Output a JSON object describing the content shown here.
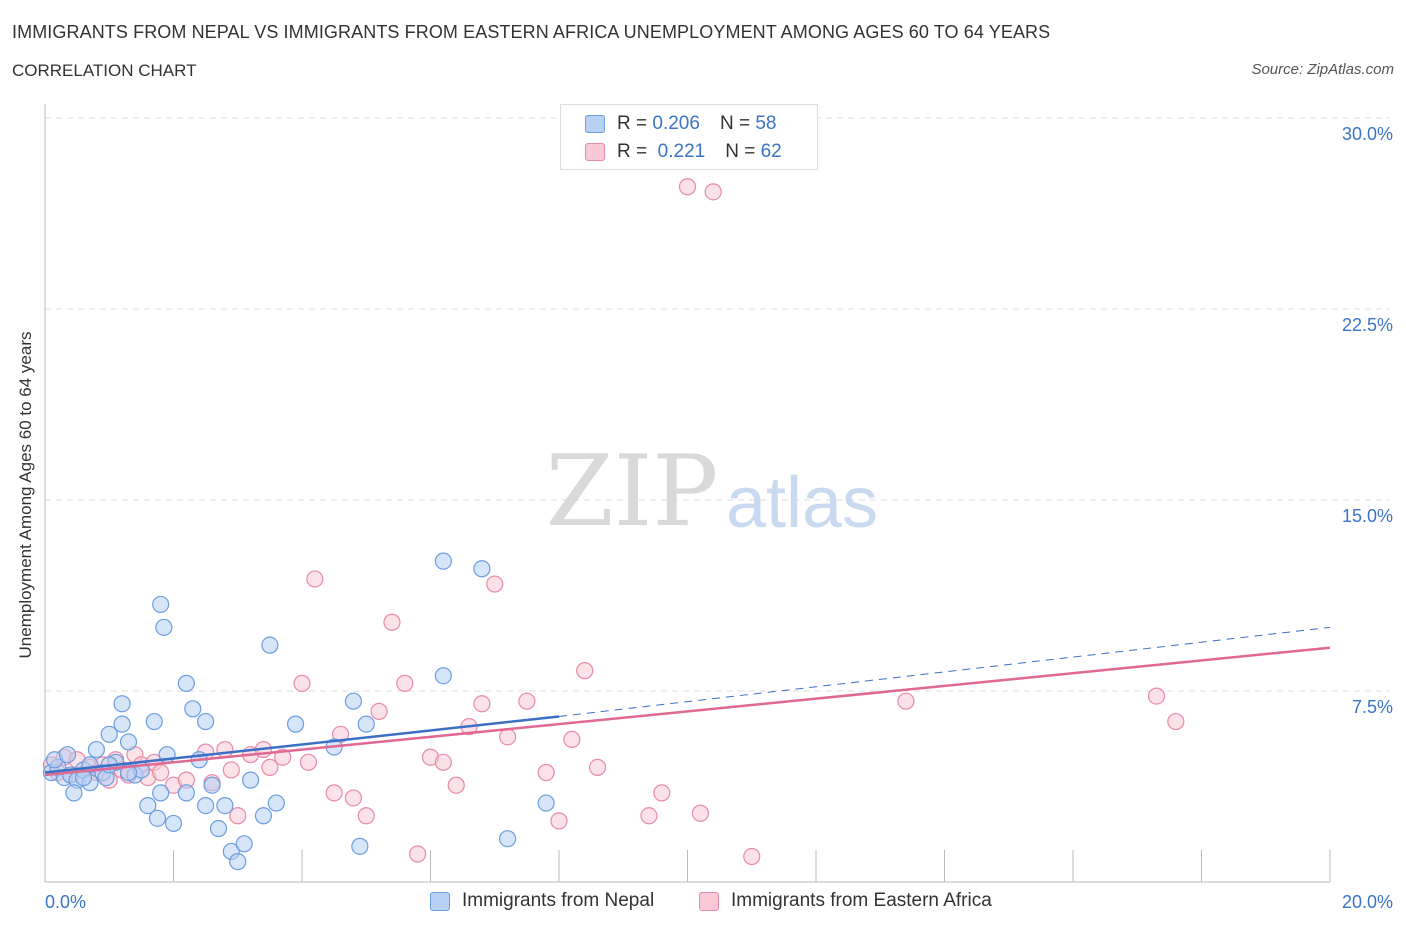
{
  "title": "IMMIGRANTS FROM NEPAL VS IMMIGRANTS FROM EASTERN AFRICA UNEMPLOYMENT AMONG AGES 60 TO 64 YEARS",
  "subtitle": "CORRELATION CHART",
  "source": "Source: ZipAtlas.com",
  "watermark": {
    "zip": "ZIP",
    "atlas": "atlas"
  },
  "colors": {
    "nepal_fill": "#b7d0f3",
    "nepal_stroke": "#6b9ee0",
    "nepal_line": "#3c6fc6",
    "africa_fill": "#f8c8d6",
    "africa_stroke": "#e98aa8",
    "africa_line": "#e06892",
    "tick_text": "#3a74c6",
    "grid": "#dddddd"
  },
  "legend": {
    "rows": [
      {
        "r_label": "R =",
        "r_value": "0.206",
        "n_label": "N =",
        "n_value": "58"
      },
      {
        "r_label": "R =",
        "r_value": "0.221",
        "n_label": "N =",
        "n_value": "62"
      }
    ]
  },
  "chart_data": {
    "type": "scatter",
    "xlabel": "",
    "ylabel": "Unemployment Among Ages 60 to 64 years",
    "xlim": [
      0,
      20
    ],
    "ylim": [
      0,
      30
    ],
    "x_tick_labels": [
      "0.0%",
      "20.0%"
    ],
    "y_ticks": [
      7.5,
      15.0,
      22.5,
      30.0
    ],
    "y_tick_labels": [
      "7.5%",
      "15.0%",
      "22.5%",
      "30.0%"
    ],
    "grid": true,
    "series": [
      {
        "name": "Immigrants from Nepal",
        "r": 0.206,
        "n": 58,
        "trend": {
          "x0": 0,
          "y0": 4.3,
          "x1": 8,
          "y1": 6.5,
          "dash_to_x": 20,
          "dash_to_y": 10.0
        },
        "points": [
          [
            0.1,
            4.3
          ],
          [
            0.2,
            4.5
          ],
          [
            0.3,
            4.1
          ],
          [
            0.15,
            4.8
          ],
          [
            0.4,
            4.2
          ],
          [
            0.35,
            5.0
          ],
          [
            0.5,
            4.0
          ],
          [
            0.6,
            4.4
          ],
          [
            0.45,
            3.5
          ],
          [
            0.7,
            4.6
          ],
          [
            0.8,
            5.2
          ],
          [
            0.9,
            4.3
          ],
          [
            1.0,
            5.8
          ],
          [
            1.1,
            4.7
          ],
          [
            1.2,
            6.2
          ],
          [
            0.95,
            4.1
          ],
          [
            1.3,
            5.5
          ],
          [
            1.4,
            4.2
          ],
          [
            1.5,
            4.4
          ],
          [
            1.6,
            3.0
          ],
          [
            1.7,
            6.3
          ],
          [
            1.8,
            3.5
          ],
          [
            1.9,
            5.0
          ],
          [
            1.75,
            2.5
          ],
          [
            2.0,
            2.3
          ],
          [
            2.2,
            7.8
          ],
          [
            2.3,
            6.8
          ],
          [
            2.4,
            4.8
          ],
          [
            2.5,
            3.0
          ],
          [
            1.8,
            10.9
          ],
          [
            1.85,
            10.0
          ],
          [
            2.5,
            6.3
          ],
          [
            2.6,
            3.8
          ],
          [
            2.7,
            2.1
          ],
          [
            2.8,
            3.0
          ],
          [
            2.9,
            1.2
          ],
          [
            3.0,
            0.8
          ],
          [
            3.1,
            1.5
          ],
          [
            3.2,
            4.0
          ],
          [
            3.4,
            2.6
          ],
          [
            3.5,
            9.3
          ],
          [
            3.6,
            3.1
          ],
          [
            3.9,
            6.2
          ],
          [
            4.5,
            5.3
          ],
          [
            4.8,
            7.1
          ],
          [
            5.0,
            6.2
          ],
          [
            4.9,
            1.4
          ],
          [
            6.2,
            8.1
          ],
          [
            6.2,
            12.6
          ],
          [
            6.8,
            12.3
          ],
          [
            7.2,
            1.7
          ],
          [
            7.8,
            3.1
          ],
          [
            1.2,
            7.0
          ],
          [
            0.7,
            3.9
          ],
          [
            1.3,
            4.3
          ],
          [
            2.2,
            3.5
          ],
          [
            0.6,
            4.1
          ],
          [
            1.0,
            4.6
          ]
        ]
      },
      {
        "name": "Immigrants from Eastern Africa",
        "r": 0.221,
        "n": 62,
        "trend": {
          "x0": 0,
          "y0": 4.2,
          "x1": 20,
          "y1": 9.2
        },
        "points": [
          [
            0.1,
            4.6
          ],
          [
            0.2,
            4.3
          ],
          [
            0.3,
            4.9
          ],
          [
            0.4,
            4.2
          ],
          [
            0.5,
            4.8
          ],
          [
            0.6,
            4.1
          ],
          [
            0.7,
            4.5
          ],
          [
            0.8,
            4.3
          ],
          [
            0.9,
            4.6
          ],
          [
            1.0,
            4.0
          ],
          [
            1.1,
            4.8
          ],
          [
            1.2,
            4.4
          ],
          [
            1.3,
            4.2
          ],
          [
            1.4,
            5.0
          ],
          [
            1.5,
            4.6
          ],
          [
            1.6,
            4.1
          ],
          [
            1.7,
            4.7
          ],
          [
            1.8,
            4.3
          ],
          [
            2.0,
            3.8
          ],
          [
            2.2,
            4.0
          ],
          [
            2.5,
            5.1
          ],
          [
            2.6,
            3.9
          ],
          [
            2.8,
            5.2
          ],
          [
            2.9,
            4.4
          ],
          [
            3.0,
            2.6
          ],
          [
            3.2,
            5.0
          ],
          [
            3.4,
            5.2
          ],
          [
            3.5,
            4.5
          ],
          [
            3.7,
            4.9
          ],
          [
            4.0,
            7.8
          ],
          [
            4.1,
            4.7
          ],
          [
            4.2,
            11.9
          ],
          [
            4.5,
            3.5
          ],
          [
            4.6,
            5.8
          ],
          [
            4.8,
            3.3
          ],
          [
            5.0,
            2.6
          ],
          [
            5.2,
            6.7
          ],
          [
            5.4,
            10.2
          ],
          [
            5.6,
            7.8
          ],
          [
            5.8,
            1.1
          ],
          [
            6.0,
            4.9
          ],
          [
            6.2,
            4.7
          ],
          [
            6.4,
            3.8
          ],
          [
            6.6,
            6.1
          ],
          [
            6.8,
            7.0
          ],
          [
            7.0,
            11.7
          ],
          [
            7.2,
            5.7
          ],
          [
            7.5,
            7.1
          ],
          [
            7.8,
            4.3
          ],
          [
            8.0,
            2.4
          ],
          [
            8.2,
            5.6
          ],
          [
            8.4,
            8.3
          ],
          [
            8.6,
            4.5
          ],
          [
            9.4,
            2.6
          ],
          [
            9.6,
            3.5
          ],
          [
            10.0,
            27.3
          ],
          [
            10.4,
            27.1
          ],
          [
            10.2,
            2.7
          ],
          [
            11.0,
            1.0
          ],
          [
            13.4,
            7.1
          ],
          [
            17.3,
            7.3
          ],
          [
            17.6,
            6.3
          ]
        ]
      }
    ]
  },
  "bottom_legend": [
    "Immigrants from Nepal",
    "Immigrants from Eastern Africa"
  ]
}
